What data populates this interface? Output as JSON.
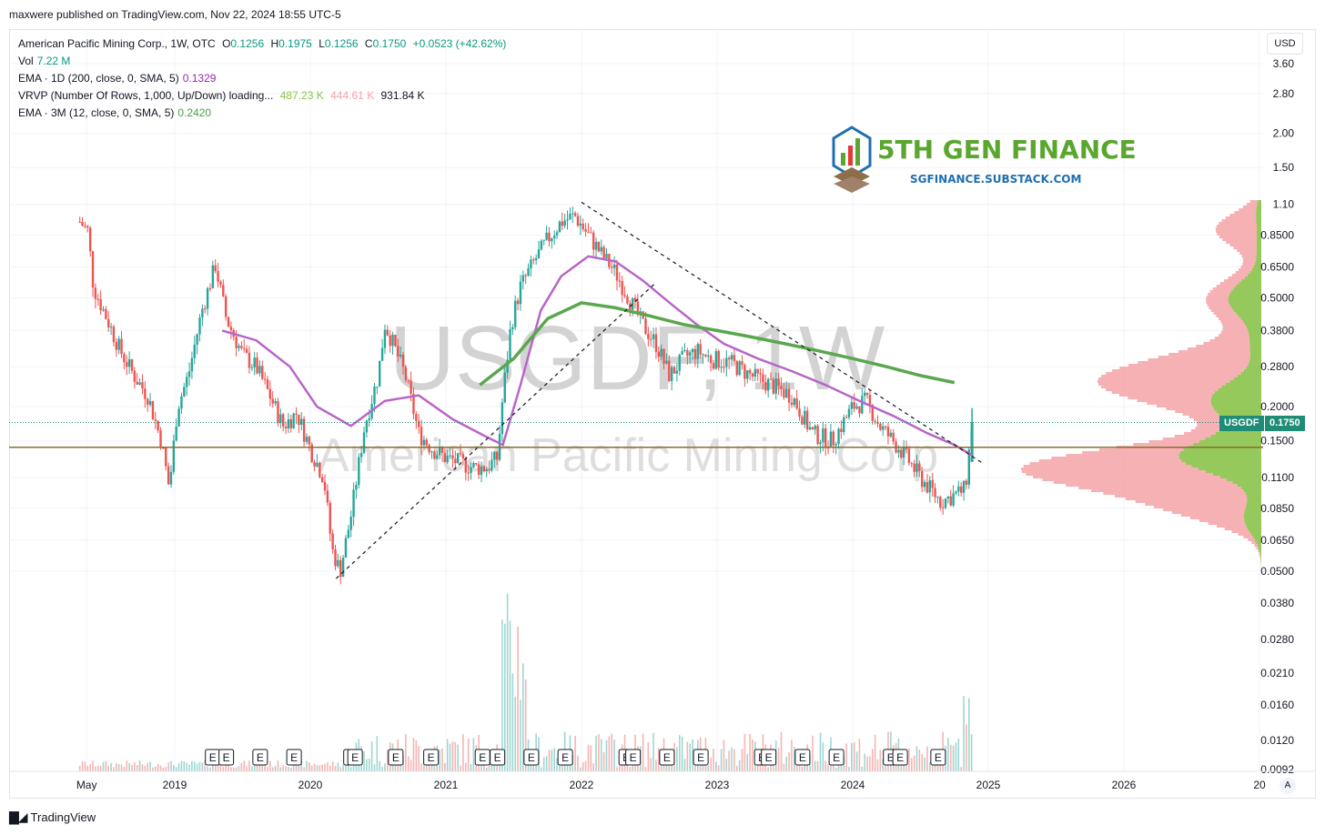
{
  "header": {
    "published_line": "maxwere published on TradingView.com, Nov 22, 2024 18:55 UTC-5"
  },
  "legend": {
    "symbol_line": {
      "name": "American Pacific Mining Corp., 1W, OTC",
      "o_label": "O",
      "o": "0.1256",
      "h_label": "H",
      "h": "0.1975",
      "l_label": "L",
      "l": "0.1256",
      "c_label": "C",
      "c": "0.1750",
      "change": "+0.0523 (+42.62%)"
    },
    "vol": {
      "label": "Vol",
      "value": "7.22 M"
    },
    "ema1": {
      "label": "EMA · 1D (200, close, 0, SMA, 5)",
      "value": "0.1329"
    },
    "vrvp": {
      "label": "VRVP (Number Of Rows, 1,000, Up/Down) loading...",
      "up": "487.23 K",
      "down": "444.61 K",
      "total": "931.84 K"
    },
    "ema2": {
      "label": "EMA · 3M (12, close, 0, SMA, 5)",
      "value": "0.2420"
    }
  },
  "watermark": {
    "ticker": "USGDF, 1W",
    "company": "American Pacific Mining Corp"
  },
  "brand": {
    "title": "5TH GEN FINANCE",
    "subtitle": "SGFINANCE.SUBSTACK.COM"
  },
  "currency_button": "USD",
  "price_tag": {
    "symbol": "USGDF",
    "price": "0.1750"
  },
  "footer": {
    "logo_text": "TradingView",
    "auto_scale": "A"
  },
  "colors": {
    "up": "#26a69a",
    "down": "#ef5350",
    "ema_purple": "#b865c8",
    "ema_green": "#5aa74e",
    "vrvp_up": "#8bc34a",
    "vrvp_down": "#f4a3a8",
    "hline": "#8a6d2e",
    "tag_bg": "#1e8c76"
  },
  "chart_data": {
    "type": "candlestick",
    "scale": "log",
    "y_axis_ticks": [
      3.6,
      2.8,
      2.0,
      1.5,
      1.1,
      0.85,
      0.65,
      0.5,
      0.38,
      0.28,
      0.2,
      0.15,
      0.11,
      0.085,
      0.065,
      0.05
    ],
    "y_axis_tick_labels": [
      "3.60",
      "2.80",
      "2.00",
      "1.50",
      "1.10",
      "0.8500",
      "0.6500",
      "0.5000",
      "0.3800",
      "0.2800",
      "0.2000",
      "0.1500",
      "0.1100",
      "0.0850",
      "0.0650",
      "0.0500"
    ],
    "volume_axis_ticks": [
      0.038,
      0.028,
      0.021,
      0.016,
      0.012,
      0.0092
    ],
    "volume_axis_tick_labels": [
      "0.0380",
      "0.0280",
      "0.0210",
      "0.0160",
      "0.0120",
      "0.0092"
    ],
    "x_axis_labels": [
      "May",
      "2019",
      "2020",
      "2021",
      "2022",
      "2023",
      "2024",
      "2025",
      "2026",
      "20"
    ],
    "x_axis_times": [
      2018.35,
      2019.0,
      2020.0,
      2021.0,
      2022.0,
      2023.0,
      2024.0,
      2025.0,
      2026.0,
      2027.0
    ],
    "close_path": [
      [
        2018.3,
        0.95
      ],
      [
        2018.36,
        0.88
      ],
      [
        2018.4,
        0.55
      ],
      [
        2018.5,
        0.42
      ],
      [
        2018.6,
        0.32
      ],
      [
        2018.7,
        0.26
      ],
      [
        2018.8,
        0.22
      ],
      [
        2018.9,
        0.15
      ],
      [
        2018.96,
        0.1
      ],
      [
        2019.02,
        0.2
      ],
      [
        2019.1,
        0.26
      ],
      [
        2019.2,
        0.45
      ],
      [
        2019.3,
        0.66
      ],
      [
        2019.38,
        0.42
      ],
      [
        2019.5,
        0.31
      ],
      [
        2019.6,
        0.28
      ],
      [
        2019.7,
        0.22
      ],
      [
        2019.8,
        0.17
      ],
      [
        2019.9,
        0.19
      ],
      [
        2020.0,
        0.14
      ],
      [
        2020.1,
        0.11
      ],
      [
        2020.16,
        0.06
      ],
      [
        2020.22,
        0.05
      ],
      [
        2020.3,
        0.08
      ],
      [
        2020.4,
        0.17
      ],
      [
        2020.5,
        0.26
      ],
      [
        2020.55,
        0.4
      ],
      [
        2020.6,
        0.35
      ],
      [
        2020.7,
        0.26
      ],
      [
        2020.8,
        0.16
      ],
      [
        2020.9,
        0.14
      ],
      [
        2021.0,
        0.13
      ],
      [
        2021.1,
        0.125
      ],
      [
        2021.2,
        0.12
      ],
      [
        2021.3,
        0.12
      ],
      [
        2021.38,
        0.13
      ],
      [
        2021.42,
        0.22
      ],
      [
        2021.48,
        0.4
      ],
      [
        2021.55,
        0.55
      ],
      [
        2021.65,
        0.68
      ],
      [
        2021.75,
        0.82
      ],
      [
        2021.85,
        0.95
      ],
      [
        2021.95,
        1.0
      ],
      [
        2022.05,
        0.85
      ],
      [
        2022.15,
        0.72
      ],
      [
        2022.25,
        0.62
      ],
      [
        2022.35,
        0.5
      ],
      [
        2022.45,
        0.4
      ],
      [
        2022.55,
        0.34
      ],
      [
        2022.65,
        0.26
      ],
      [
        2022.75,
        0.3
      ],
      [
        2022.85,
        0.32
      ],
      [
        2022.95,
        0.3
      ],
      [
        2023.1,
        0.29
      ],
      [
        2023.25,
        0.26
      ],
      [
        2023.4,
        0.24
      ],
      [
        2023.55,
        0.22
      ],
      [
        2023.7,
        0.16
      ],
      [
        2023.85,
        0.15
      ],
      [
        2024.0,
        0.2
      ],
      [
        2024.1,
        0.21
      ],
      [
        2024.2,
        0.17
      ],
      [
        2024.35,
        0.14
      ],
      [
        2024.5,
        0.11
      ],
      [
        2024.65,
        0.09
      ],
      [
        2024.75,
        0.095
      ],
      [
        2024.83,
        0.1
      ],
      [
        2024.88,
        0.175
      ]
    ],
    "ema_1d_200": [
      [
        2019.35,
        0.38
      ],
      [
        2019.6,
        0.35
      ],
      [
        2019.85,
        0.28
      ],
      [
        2020.05,
        0.2
      ],
      [
        2020.3,
        0.17
      ],
      [
        2020.55,
        0.21
      ],
      [
        2020.8,
        0.22
      ],
      [
        2021.05,
        0.18
      ],
      [
        2021.3,
        0.155
      ],
      [
        2021.42,
        0.145
      ],
      [
        2021.55,
        0.24
      ],
      [
        2021.7,
        0.45
      ],
      [
        2021.85,
        0.6
      ],
      [
        2022.05,
        0.71
      ],
      [
        2022.25,
        0.68
      ],
      [
        2022.45,
        0.58
      ],
      [
        2022.65,
        0.48
      ],
      [
        2022.85,
        0.4
      ],
      [
        2023.05,
        0.34
      ],
      [
        2023.3,
        0.3
      ],
      [
        2023.55,
        0.27
      ],
      [
        2023.8,
        0.24
      ],
      [
        2024.05,
        0.21
      ],
      [
        2024.3,
        0.185
      ],
      [
        2024.55,
        0.16
      ],
      [
        2024.75,
        0.145
      ],
      [
        2024.88,
        0.1329
      ]
    ],
    "ema_3m_12": [
      [
        2021.25,
        0.24
      ],
      [
        2021.5,
        0.3
      ],
      [
        2021.75,
        0.42
      ],
      [
        2022.0,
        0.48
      ],
      [
        2022.25,
        0.46
      ],
      [
        2022.5,
        0.43
      ],
      [
        2022.75,
        0.4
      ],
      [
        2023.0,
        0.38
      ],
      [
        2023.25,
        0.36
      ],
      [
        2023.5,
        0.34
      ],
      [
        2023.75,
        0.32
      ],
      [
        2024.0,
        0.3
      ],
      [
        2024.25,
        0.28
      ],
      [
        2024.5,
        0.26
      ],
      [
        2024.75,
        0.245
      ]
    ],
    "trendlines": [
      {
        "from": [
          2020.19,
          0.047
        ],
        "to": [
          2022.55,
          0.57
        ],
        "style": "dashed"
      },
      {
        "from": [
          2022.0,
          1.12
        ],
        "to": [
          2024.95,
          0.125
        ],
        "style": "dashed"
      }
    ],
    "horizontal_line": 0.142,
    "current_price": 0.175
  }
}
